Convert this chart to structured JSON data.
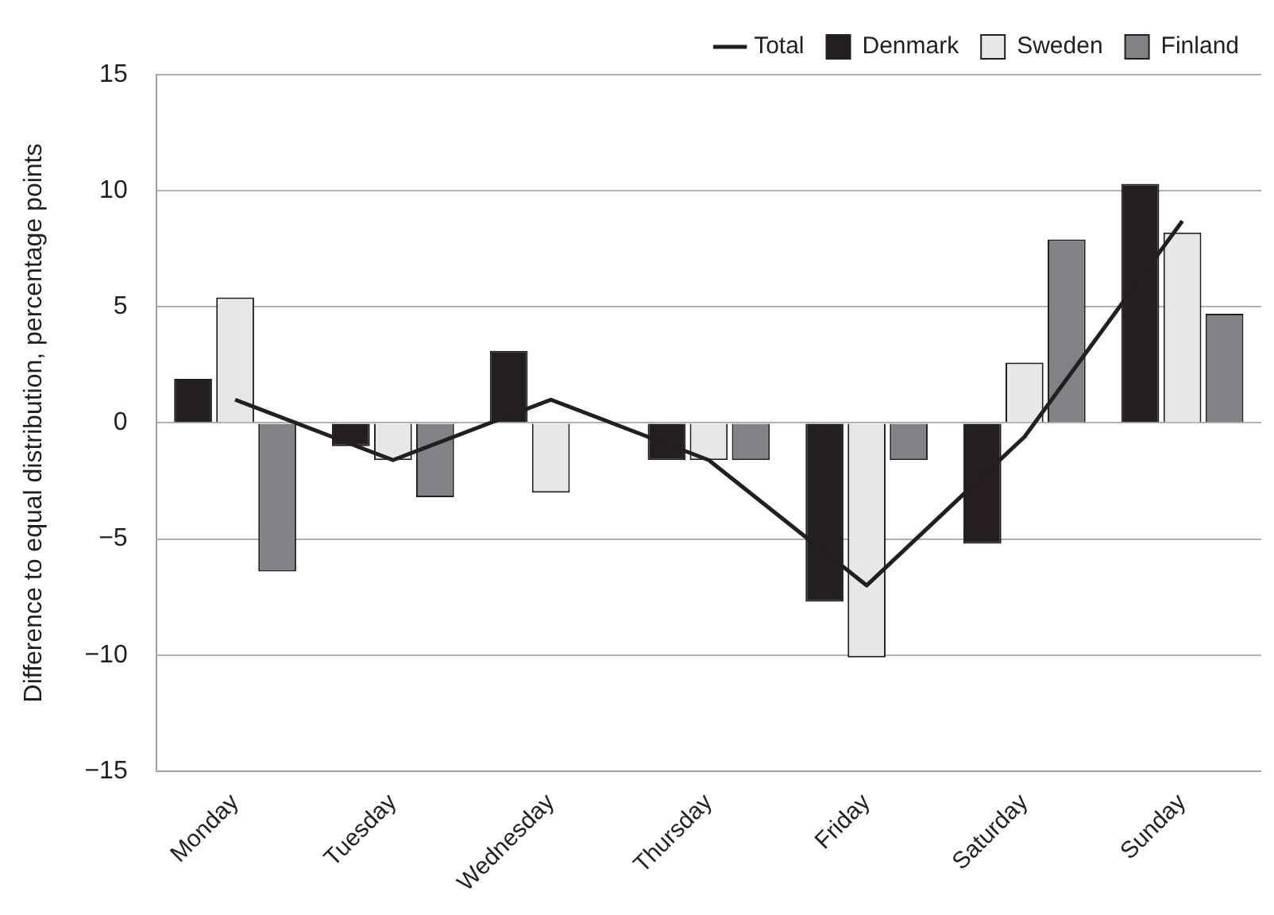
{
  "chart_data": {
    "type": "bar",
    "ylabel": "Difference to equal distribution, percentage points",
    "categories": [
      "Monday",
      "Tuesday",
      "Wednesday",
      "Thursday",
      "Friday",
      "Saturday",
      "Sunday"
    ],
    "series": [
      {
        "name": "Denmark",
        "color": "#231f20",
        "values": [
          1.9,
          -1.0,
          3.1,
          -1.6,
          -7.7,
          -5.2,
          10.3
        ]
      },
      {
        "name": "Sweden",
        "color": "#e6e7e8",
        "values": [
          5.4,
          -1.6,
          -3.0,
          -1.6,
          -10.1,
          2.6,
          8.2
        ]
      },
      {
        "name": "Finland",
        "color": "#808285",
        "values": [
          -6.4,
          -3.2,
          0,
          -1.6,
          -1.6,
          7.9,
          4.7
        ]
      },
      {
        "name": "Total",
        "type": "line",
        "color": "#231f20",
        "values": [
          1.0,
          -1.6,
          1.0,
          -1.6,
          -7.0,
          -0.6,
          8.7
        ]
      }
    ],
    "ylim": [
      -15,
      15
    ],
    "yticks": [
      15,
      10,
      5,
      0,
      {
        "value": -5,
        "label": "−5"
      },
      {
        "value": -10,
        "label": "−10"
      },
      {
        "value": -15,
        "label": "−15"
      }
    ],
    "grid": "y",
    "legend": "top right",
    "marker": "none",
    "line_style": "solid"
  }
}
